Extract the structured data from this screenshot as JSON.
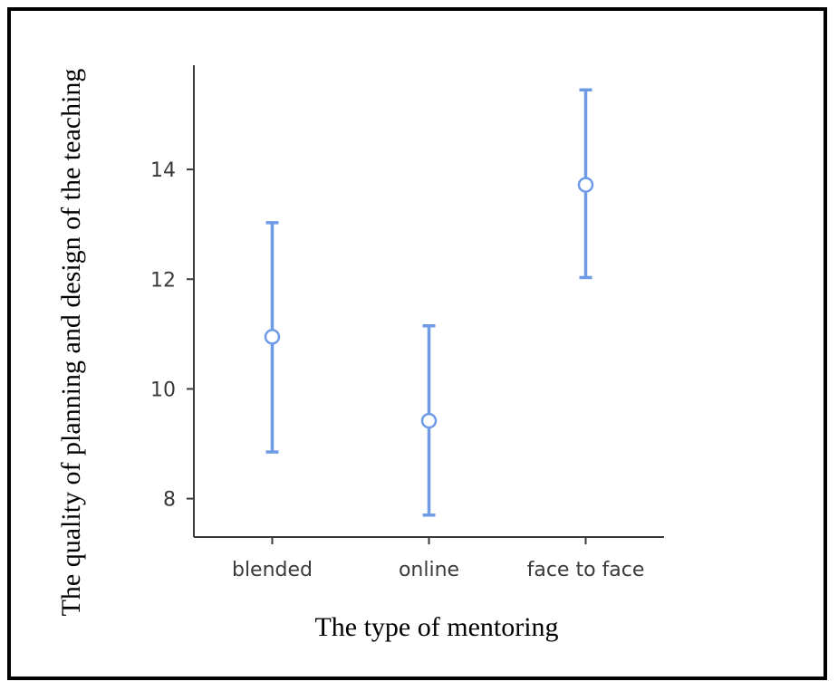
{
  "chart_data": {
    "type": "scatter",
    "subtype": "error-bar",
    "title": "",
    "xlabel": "The type of mentoring",
    "ylabel": "The quality of planning and design of the teaching",
    "categories": [
      "blended",
      "online",
      "face to face"
    ],
    "means": [
      10.95,
      9.42,
      13.72
    ],
    "lower": [
      8.85,
      7.7,
      12.03
    ],
    "upper": [
      13.03,
      11.15,
      15.45
    ],
    "yticks": [
      "8",
      "10",
      "12",
      "14"
    ],
    "ylim": [
      7.3,
      15.9
    ],
    "grid": false,
    "legend": "none",
    "colors": {
      "series": "#6f9be6",
      "axis": "#3a3a3a",
      "marker_fill": "#ffffff"
    }
  }
}
